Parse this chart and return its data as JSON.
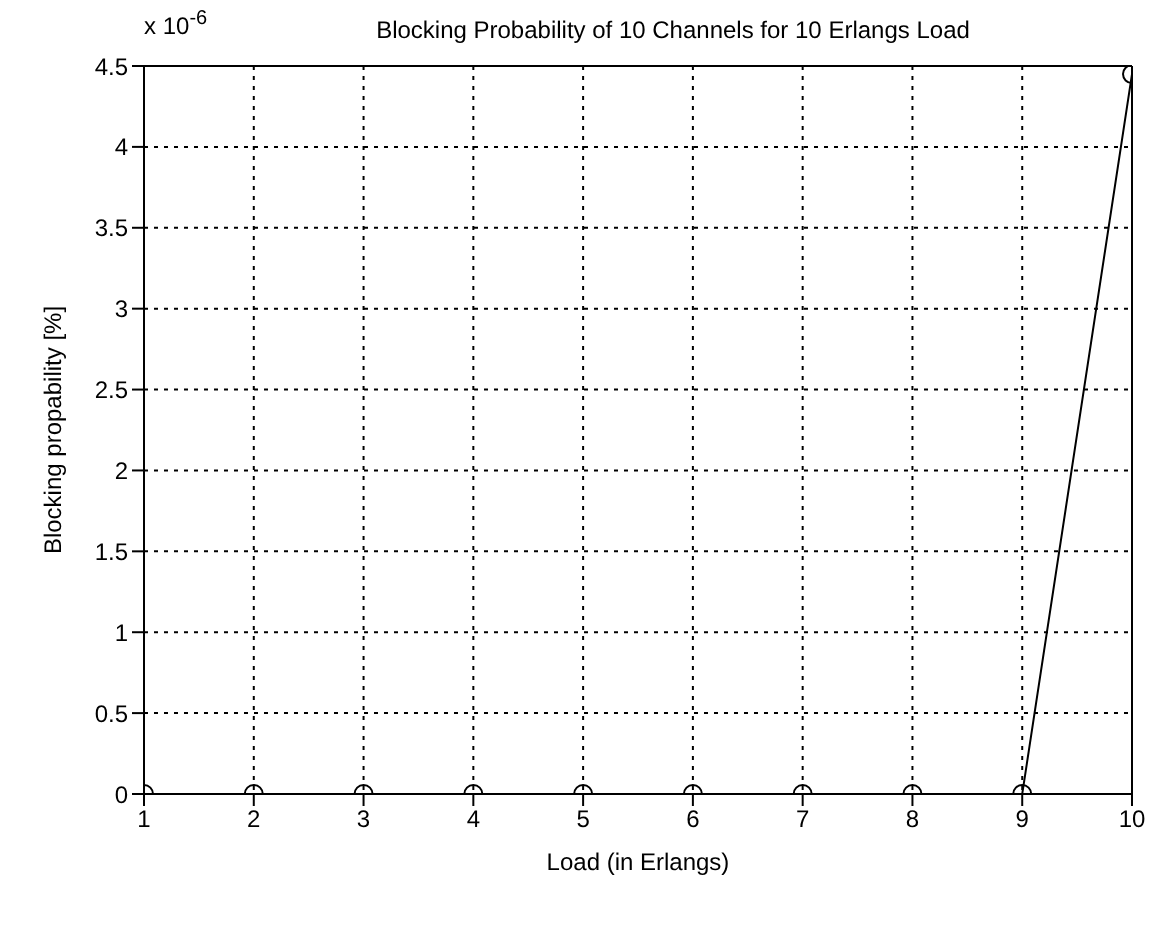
{
  "chart_data": {
    "type": "line",
    "title": "Blocking Probability of 10 Channels for 10 Erlangs Load",
    "xlabel": "Load (in Erlangs)",
    "ylabel": "Blocking propability [%]",
    "annotations": [
      "x 10$^{-6}$"
    ],
    "x": [
      1,
      2,
      3,
      4,
      5,
      6,
      7,
      8,
      9,
      10
    ],
    "series": [
      {
        "color": "#000000",
        "values": [
          0,
          0,
          0,
          0,
          0,
          0,
          0,
          0,
          0,
          4.45
        ]
      }
    ],
    "xlim": [
      1,
      10
    ],
    "xticks": [
      1,
      2,
      3,
      4,
      5,
      6,
      7,
      8,
      9,
      10
    ],
    "ylim": [
      0,
      4.5
    ],
    "yticks": [
      0,
      0.5,
      1,
      1.5,
      2,
      2.5,
      3,
      3.5,
      4,
      4.5
    ],
    "grid": true,
    "legend": false,
    "marker": "circle",
    "line_style": "solid"
  }
}
